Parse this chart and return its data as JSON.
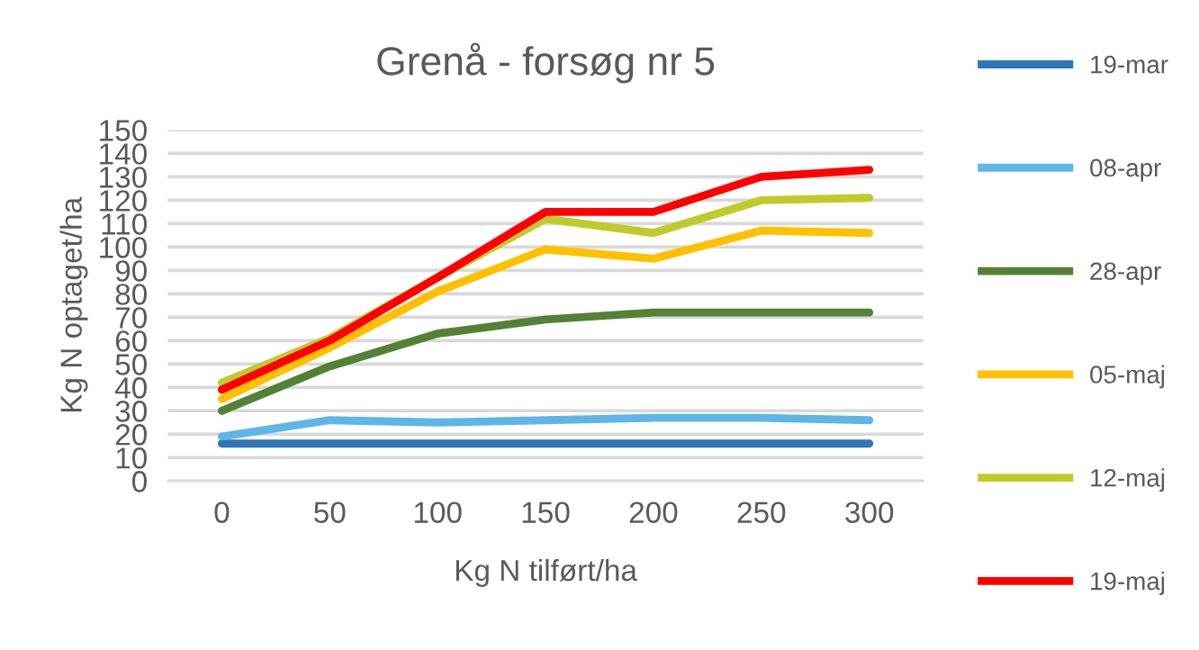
{
  "chart_data": {
    "type": "line",
    "title": "Grenå - forsøg nr 5",
    "xlabel": "Kg N tilført/ha",
    "ylabel": "Kg N optaget/ha",
    "categories": [
      "0",
      "50",
      "100",
      "150",
      "200",
      "250",
      "300"
    ],
    "series": [
      {
        "name": "19-mar",
        "color": "#2e75b6",
        "values": [
          16,
          16,
          16,
          16,
          16,
          16,
          16
        ]
      },
      {
        "name": "08-apr",
        "color": "#5db5e8",
        "values": [
          19,
          26,
          25,
          26,
          27,
          27,
          26
        ]
      },
      {
        "name": "28-apr",
        "color": "#538135",
        "values": [
          30,
          49,
          63,
          69,
          72,
          72,
          72
        ]
      },
      {
        "name": "05-maj",
        "color": "#ffc000",
        "values": [
          35,
          57,
          81,
          99,
          95,
          107,
          106
        ]
      },
      {
        "name": "12-maj",
        "color": "#bfcb2a",
        "values": [
          42,
          61,
          87,
          112,
          106,
          120,
          121
        ]
      },
      {
        "name": "19-maj",
        "color": "#ff0000",
        "values": [
          39,
          60,
          87,
          115,
          115,
          130,
          133
        ]
      }
    ],
    "ylim": [
      0,
      150
    ],
    "yticks": [
      0,
      10,
      20,
      30,
      40,
      50,
      60,
      70,
      80,
      90,
      100,
      110,
      120,
      130,
      140,
      150
    ],
    "grid": "y",
    "legend": "right",
    "marker": "none",
    "line_style": "solid"
  }
}
